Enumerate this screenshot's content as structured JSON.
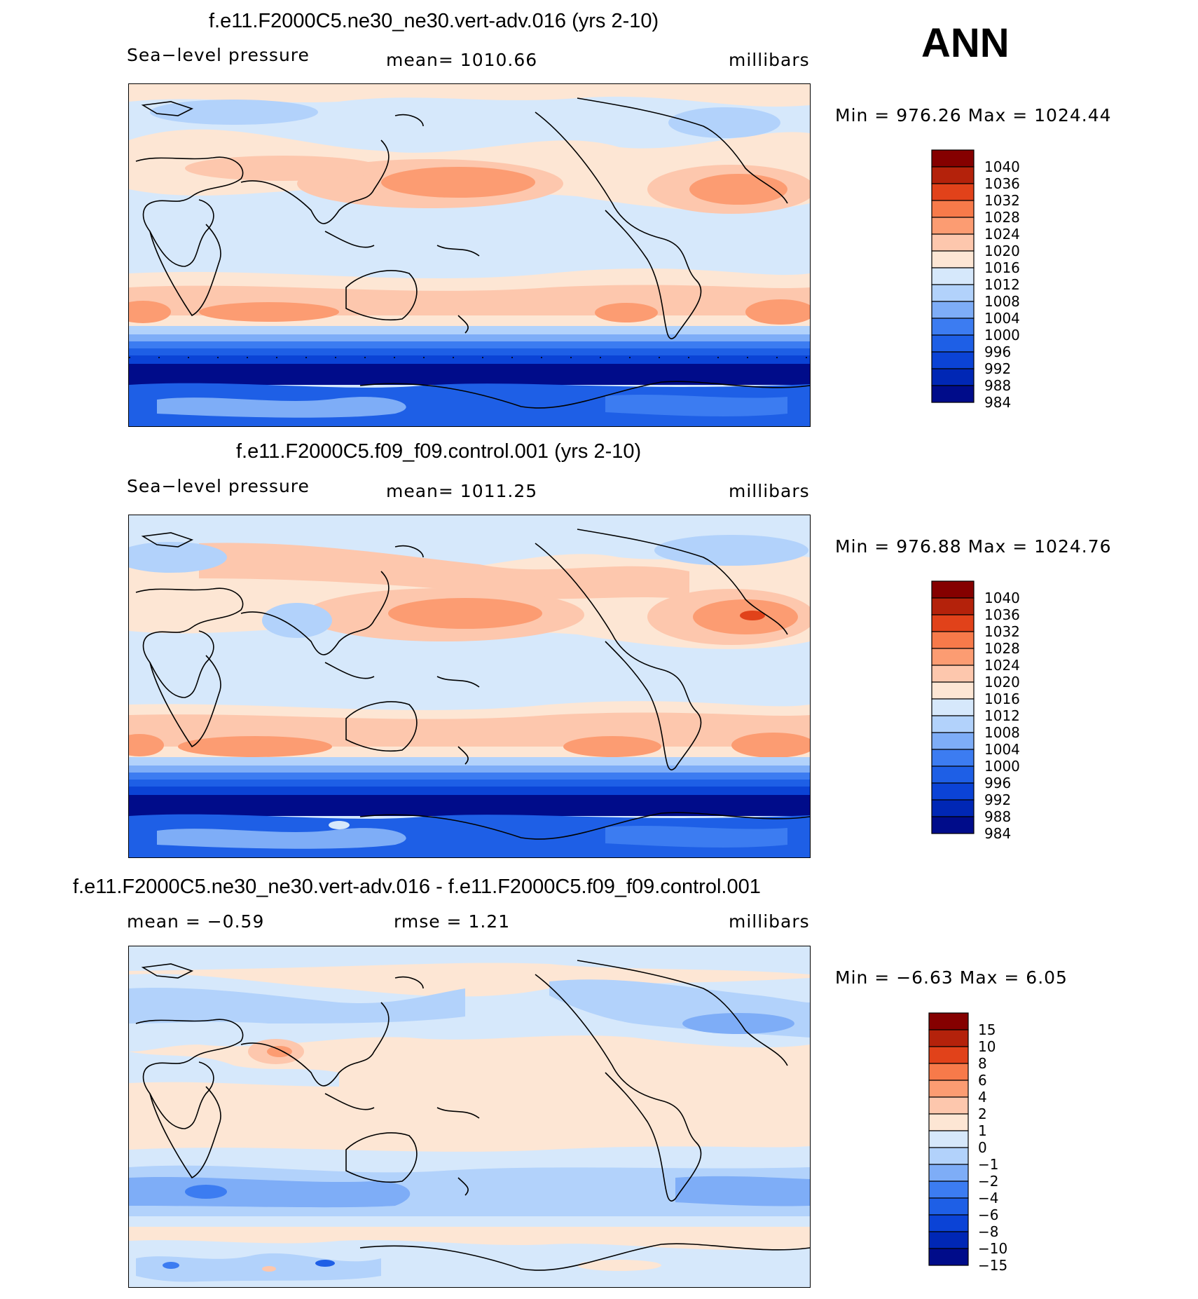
{
  "season": "ANN",
  "colors": {
    "abs_scale": [
      "#000c8a",
      "#0027b5",
      "#0b43d6",
      "#1e5fe6",
      "#3c7cf1",
      "#7eadf7",
      "#b2d2fb",
      "#d6e8fb",
      "#fde6d4",
      "#fdc7ad",
      "#fc9c72",
      "#f77a4a",
      "#e1421a",
      "#b4220b",
      "#850000"
    ],
    "diff_scale": [
      "#000c8a",
      "#0027b5",
      "#0b43d6",
      "#1e5fe6",
      "#3c7cf1",
      "#7eadf7",
      "#b2d2fb",
      "#d6e8fb",
      "#fde6d4",
      "#fdc7ad",
      "#fc9c72",
      "#f77a4a",
      "#e1421a",
      "#b4220b",
      "#850000"
    ]
  },
  "panels": [
    {
      "title": "f.e11.F2000C5.ne30_ne30.vert-adv.016 (yrs 2-10)",
      "left_label": "Sea−level pressure",
      "mid_label": "mean=  1010.66",
      "right_label": "millibars",
      "minmax": "Min  =  976.26  Max  =  1024.44",
      "colorbar_labels": [
        "1040",
        "1036",
        "1032",
        "1028",
        "1024",
        "1020",
        "1016",
        "1012",
        "1008",
        "1004",
        "1000",
        "996",
        "992",
        "988",
        "984"
      ]
    },
    {
      "title": "f.e11.F2000C5.f09_f09.control.001 (yrs 2-10)",
      "left_label": "Sea−level pressure",
      "mid_label": "mean=  1011.25",
      "right_label": "millibars",
      "minmax": "Min  =  976.88  Max  =  1024.76",
      "colorbar_labels": [
        "1040",
        "1036",
        "1032",
        "1028",
        "1024",
        "1020",
        "1016",
        "1012",
        "1008",
        "1004",
        "1000",
        "996",
        "992",
        "988",
        "984"
      ]
    },
    {
      "title": "f.e11.F2000C5.ne30_ne30.vert-adv.016 - f.e11.F2000C5.f09_f09.control.001",
      "left_label": "mean  =    −0.59",
      "mid_label": "rmse  =      1.21",
      "right_label": "millibars",
      "minmax": "Min  =    −6.63  Max  =      6.05",
      "colorbar_labels": [
        "15",
        "10",
        "8",
        "6",
        "4",
        "2",
        "1",
        "0",
        "−1",
        "−2",
        "−4",
        "−6",
        "−8",
        "−10",
        "−15"
      ]
    }
  ],
  "chart_data": [
    {
      "type": "heatmap",
      "title": "f.e11.F2000C5.ne30_ne30.vert-adv.016 (yrs 2-10)",
      "variable": "Sea-level pressure",
      "units": "millibars",
      "mean": 1010.66,
      "min": 976.26,
      "max": 1024.44,
      "contour_levels": [
        984,
        988,
        992,
        996,
        1000,
        1004,
        1008,
        1012,
        1016,
        1020,
        1024,
        1028,
        1032,
        1036,
        1040
      ]
    },
    {
      "type": "heatmap",
      "title": "f.e11.F2000C5.f09_f09.control.001 (yrs 2-10)",
      "variable": "Sea-level pressure",
      "units": "millibars",
      "mean": 1011.25,
      "min": 976.88,
      "max": 1024.76,
      "contour_levels": [
        984,
        988,
        992,
        996,
        1000,
        1004,
        1008,
        1012,
        1016,
        1020,
        1024,
        1028,
        1032,
        1036,
        1040
      ]
    },
    {
      "type": "heatmap",
      "title": "f.e11.F2000C5.ne30_ne30.vert-adv.016 - f.e11.F2000C5.f09_f09.control.001",
      "variable": "Sea-level pressure difference",
      "units": "millibars",
      "mean": -0.59,
      "rmse": 1.21,
      "min": -6.63,
      "max": 6.05,
      "contour_levels": [
        -15,
        -10,
        -8,
        -6,
        -4,
        -2,
        -1,
        0,
        1,
        2,
        4,
        6,
        8,
        10,
        15
      ]
    }
  ]
}
